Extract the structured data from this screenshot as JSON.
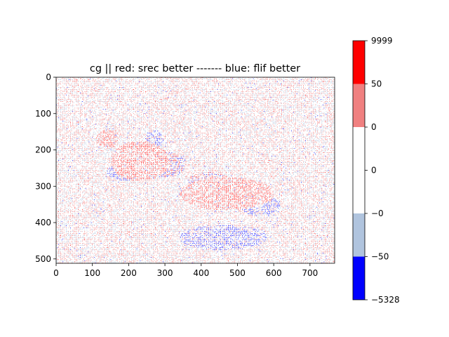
{
  "chart_data": {
    "type": "heatmap",
    "title": "cg || red: srec better ------- blue: flif better",
    "xlabel": "",
    "ylabel": "",
    "xlim": [
      0,
      768
    ],
    "ylim": [
      512,
      0
    ],
    "xticks": [
      0,
      100,
      200,
      300,
      400,
      500,
      600,
      700
    ],
    "yticks": [
      0,
      100,
      200,
      300,
      400,
      500
    ],
    "colorbar": {
      "boundaries": [
        -5328,
        -50,
        0,
        0,
        0,
        50,
        9999
      ],
      "tick_labels": [
        "−5328",
        "−50",
        "−0",
        "0",
        "0",
        "50",
        "9999"
      ],
      "colors": [
        "#0000ff",
        "#b0c4de",
        "#ffffff",
        "#ffffff",
        "#f08080",
        "#ff0000"
      ]
    },
    "colors": {
      "strong_blue": "#0000ff",
      "light_blue": "#b0c4de",
      "neutral": "#ffffff",
      "light_red": "#f08080",
      "strong_red": "#ff0000"
    }
  }
}
